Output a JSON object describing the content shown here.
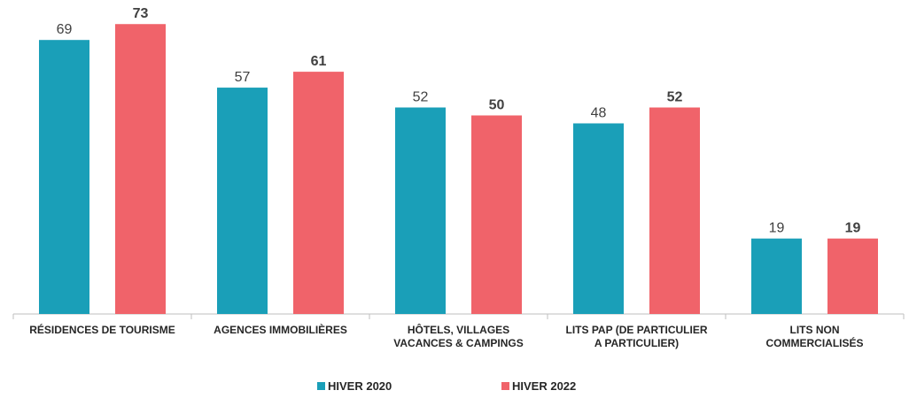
{
  "chart_data": {
    "type": "bar",
    "categories": [
      "RÉSIDENCES DE TOURISME",
      "AGENCES IMMOBILIÈRES",
      "HÔTELS, VILLAGES\nVACANCES & CAMPINGS",
      "LITS PAP (DE PARTICULIER\nA PARTICULIER)",
      "LITS NON\nCOMMERCIALISÉS"
    ],
    "series": [
      {
        "name": "HIVER 2020",
        "color": "#1a9fb8",
        "values": [
          69,
          57,
          52,
          48,
          19
        ]
      },
      {
        "name": "HIVER 2022",
        "color": "#f0636a",
        "values": [
          73,
          61,
          50,
          52,
          19
        ]
      }
    ]
  }
}
